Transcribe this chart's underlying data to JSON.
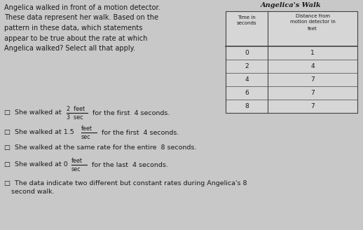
{
  "title": "Angelica's Walk",
  "table_headers_col1_line1": "Time in",
  "table_headers_col1_line2": "seconds",
  "table_headers_col2_line1": "Distance from",
  "table_headers_col2_line2": "motion detector in",
  "table_headers_col2_line3": "feet",
  "table_data": [
    [
      0,
      1
    ],
    [
      2,
      4
    ],
    [
      4,
      7
    ],
    [
      6,
      7
    ],
    [
      8,
      7
    ]
  ],
  "left_text_lines": [
    "Angelica walked in front of a motion detector.",
    "These data represent her walk. Based on the",
    "pattern in these data, which statements",
    "appear to be true about the rate at which",
    "Angelica walked? Select all that apply."
  ],
  "bg_color": "#c8c8c8",
  "table_bg": "#d8d8d8",
  "text_color": "#1a1a1a",
  "table_border_color": "#444444",
  "checkbox": "□"
}
